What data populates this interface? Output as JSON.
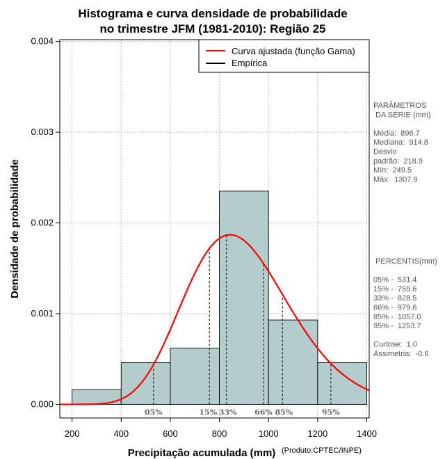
{
  "chart_data": {
    "type": "bar",
    "title_lines": [
      "Histograma e curva densidade de probabilidade",
      "no trimestre JFM (1981-2010): Região 25"
    ],
    "xlabel": "Precipitação acumulada (mm)",
    "ylabel": "Densidade de probabilidade",
    "credit": "(Produto:CPTEC/INPE)",
    "xlim": [
      150,
      1410
    ],
    "ylim": [
      -0.00015,
      0.00402
    ],
    "x_ticks": [
      200,
      400,
      600,
      800,
      1000,
      1200,
      1400
    ],
    "x_tick_labels": [
      "200",
      "400",
      "600",
      "800",
      "1000",
      "1200",
      "1400"
    ],
    "y_ticks": [
      0,
      0.001,
      0.002,
      0.003,
      0.004
    ],
    "y_tick_labels": [
      "0.000",
      "0.001",
      "0.002",
      "0.003",
      "0.004"
    ],
    "bins": [
      {
        "start": 200,
        "end": 400,
        "density": 0.00016
      },
      {
        "start": 400,
        "end": 600,
        "density": 0.00046
      },
      {
        "start": 600,
        "end": 800,
        "density": 0.00062
      },
      {
        "start": 800,
        "end": 1000,
        "density": 0.00235
      },
      {
        "start": 1000,
        "end": 1200,
        "density": 0.00093
      },
      {
        "start": 1200,
        "end": 1400,
        "density": 0.00046
      }
    ],
    "gamma_fit": {
      "mean": 896.7,
      "sd": 218.9
    },
    "legend": [
      {
        "label": "Curva ajustada (função Gama)",
        "color": "#ff0000"
      },
      {
        "label": "Empírica",
        "color": "#000000"
      }
    ],
    "percentiles": [
      {
        "label": "05%",
        "value": 531.4
      },
      {
        "label": "15%",
        "value": 759.6
      },
      {
        "label": "33%",
        "value": 828.5
      },
      {
        "label": "66%",
        "value": 979.6
      },
      {
        "label": "85%",
        "value": 1057.0
      },
      {
        "label": "95%",
        "value": 1253.7
      }
    ],
    "colors": {
      "bar_fill": "#b4cccb",
      "curve": "#ff0000",
      "grid": "#bbbbbb"
    }
  },
  "params_panel": {
    "lines": [
      "PARÂMETROS",
      " DA SÉRIE (mm)",
      "",
      "Média:  896.7",
      "Mediana:  914.8",
      "Desvio",
      "padrão:  218.9",
      "Mín:  249.5",
      "Máx:  1307.9"
    ]
  },
  "percentiles_panel": {
    "lines": [
      " PERCENTIS(mm)",
      "",
      "05% -  531.4",
      "15% -  759.6",
      "33% -  828.5",
      "66% -  979.6",
      "85% -  1057.0",
      "95% -  1253.7",
      "",
      "Curtose:  1.0",
      "Assimetria:  -0.6"
    ]
  }
}
